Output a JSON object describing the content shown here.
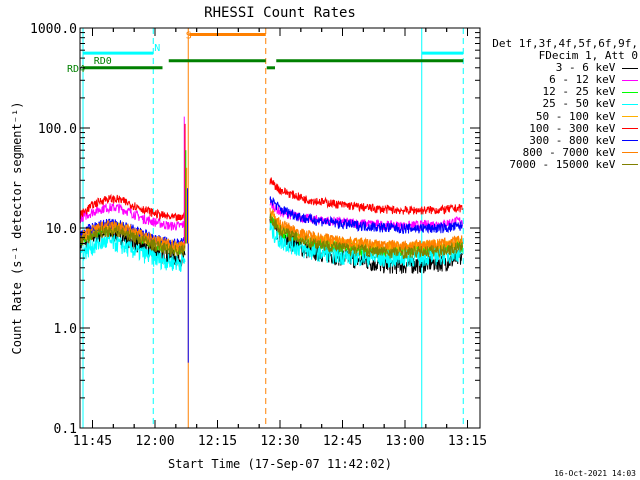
{
  "chart_data": {
    "type": "line",
    "title": "RHESSI Count Rates",
    "xlabel": "Start Time (17-Sep-07 11:42:02)",
    "ylabel": "Count Rate (s⁻¹ detector segment⁻¹)",
    "ylog": true,
    "xlim_minutes": [
      11.7,
      13.3
    ],
    "ylim": [
      0.1,
      1000
    ],
    "x_ticks": [
      "11:45",
      "12:00",
      "12:15",
      "12:30",
      "12:45",
      "13:00",
      "13:15"
    ],
    "y_ticks": [
      "0.1",
      "1.0",
      "10.0",
      "100.0",
      "1000.0"
    ],
    "legend_header": [
      "Det 1f,3f,4f,5f,6f,9f,",
      "FDecim 1, Att 0"
    ],
    "series": [
      {
        "name": "3 - 6 keV",
        "color": "#000000",
        "before": [
          [
            11.7,
            7.0
          ],
          [
            11.75,
            8.5
          ],
          [
            11.8,
            9.2
          ],
          [
            11.85,
            8.8
          ],
          [
            11.9,
            7.8
          ],
          [
            11.95,
            6.6
          ],
          [
            12.0,
            5.8
          ],
          [
            12.06,
            5.2
          ],
          [
            12.1,
            5.0
          ],
          [
            12.12,
            5.0
          ]
        ],
        "after": [
          [
            12.46,
            12.0
          ],
          [
            12.5,
            8.5
          ],
          [
            12.6,
            6.2
          ],
          [
            12.75,
            5.2
          ],
          [
            12.9,
            4.4
          ],
          [
            13.0,
            4.3
          ],
          [
            13.15,
            4.6
          ],
          [
            13.23,
            5.0
          ]
        ]
      },
      {
        "name": "6 - 12 keV",
        "color": "#ff00ff",
        "before": [
          [
            11.7,
            12.5
          ],
          [
            11.75,
            14.5
          ],
          [
            11.8,
            16.0
          ],
          [
            11.85,
            16.0
          ],
          [
            11.9,
            14.5
          ],
          [
            11.95,
            12.5
          ],
          [
            12.0,
            11.5
          ],
          [
            12.06,
            10.5
          ],
          [
            12.1,
            10.5
          ],
          [
            12.12,
            11.0
          ]
        ],
        "after": [
          [
            12.46,
            18.0
          ],
          [
            12.5,
            14.5
          ],
          [
            12.6,
            12.5
          ],
          [
            12.75,
            11.5
          ],
          [
            12.9,
            10.8
          ],
          [
            13.0,
            10.5
          ],
          [
            13.15,
            11.0
          ],
          [
            13.23,
            12.0
          ]
        ]
      },
      {
        "name": "12 - 25 keV",
        "color": "#00ff00",
        "before": [
          [
            11.7,
            7.5
          ],
          [
            11.75,
            9.0
          ],
          [
            11.8,
            10.0
          ],
          [
            11.85,
            10.0
          ],
          [
            11.9,
            9.0
          ],
          [
            11.95,
            8.0
          ],
          [
            12.0,
            7.0
          ],
          [
            12.06,
            6.5
          ],
          [
            12.1,
            6.3
          ],
          [
            12.12,
            6.6
          ]
        ],
        "after": [
          [
            12.46,
            13.0
          ],
          [
            12.5,
            9.5
          ],
          [
            12.6,
            7.5
          ],
          [
            12.75,
            6.5
          ],
          [
            12.9,
            6.0
          ],
          [
            13.0,
            5.9
          ],
          [
            13.15,
            6.3
          ],
          [
            13.23,
            6.8
          ]
        ]
      },
      {
        "name": "25 - 50 keV",
        "color": "#00ffff",
        "before": [
          [
            11.7,
            5.5
          ],
          [
            11.75,
            6.6
          ],
          [
            11.8,
            7.3
          ],
          [
            11.85,
            7.0
          ],
          [
            11.9,
            6.2
          ],
          [
            11.95,
            5.6
          ],
          [
            12.0,
            5.0
          ],
          [
            12.06,
            4.6
          ],
          [
            12.1,
            4.5
          ],
          [
            12.12,
            4.8
          ]
        ],
        "after": [
          [
            12.46,
            10.0
          ],
          [
            12.5,
            7.5
          ],
          [
            12.6,
            6.0
          ],
          [
            12.75,
            5.3
          ],
          [
            12.9,
            5.0
          ],
          [
            13.0,
            5.0
          ],
          [
            13.15,
            5.3
          ],
          [
            13.23,
            5.8
          ]
        ]
      },
      {
        "name": "50 - 100 keV",
        "color": "#ffb000",
        "before": [
          [
            11.7,
            7.8
          ],
          [
            11.75,
            9.3
          ],
          [
            11.8,
            10.2
          ],
          [
            11.85,
            10.2
          ],
          [
            11.9,
            9.2
          ],
          [
            11.95,
            8.2
          ],
          [
            12.0,
            7.2
          ],
          [
            12.06,
            6.7
          ],
          [
            12.1,
            6.5
          ],
          [
            12.12,
            6.8
          ]
        ],
        "after": [
          [
            12.46,
            14.0
          ],
          [
            12.5,
            10.0
          ],
          [
            12.6,
            8.0
          ],
          [
            12.75,
            7.0
          ],
          [
            12.9,
            6.5
          ],
          [
            13.0,
            6.4
          ],
          [
            13.15,
            6.8
          ],
          [
            13.23,
            7.3
          ]
        ]
      },
      {
        "name": "100 - 300 keV",
        "color": "#ff0000",
        "before": [
          [
            11.7,
            13.5
          ],
          [
            11.75,
            17.0
          ],
          [
            11.8,
            19.5
          ],
          [
            11.85,
            19.5
          ],
          [
            11.9,
            17.5
          ],
          [
            11.95,
            15.5
          ],
          [
            12.0,
            14.0
          ],
          [
            12.06,
            12.8
          ],
          [
            12.1,
            12.5
          ],
          [
            12.12,
            13.5
          ]
        ],
        "after": [
          [
            12.46,
            30.0
          ],
          [
            12.5,
            24.0
          ],
          [
            12.6,
            19.5
          ],
          [
            12.75,
            17.0
          ],
          [
            12.9,
            15.5
          ],
          [
            13.0,
            15.0
          ],
          [
            13.15,
            15.2
          ],
          [
            13.23,
            16.0
          ]
        ]
      },
      {
        "name": "300 - 800 keV",
        "color": "#0000ff",
        "before": [
          [
            11.7,
            8.5
          ],
          [
            11.75,
            10.2
          ],
          [
            11.8,
            11.0
          ],
          [
            11.85,
            11.0
          ],
          [
            11.9,
            10.0
          ],
          [
            11.95,
            8.8
          ],
          [
            12.0,
            7.8
          ],
          [
            12.06,
            7.2
          ],
          [
            12.1,
            7.0
          ],
          [
            12.12,
            7.4
          ]
        ],
        "after": [
          [
            12.46,
            20.0
          ],
          [
            12.5,
            15.5
          ],
          [
            12.6,
            12.5
          ],
          [
            12.75,
            11.0
          ],
          [
            12.9,
            10.2
          ],
          [
            13.0,
            9.9
          ],
          [
            13.15,
            10.0
          ],
          [
            13.23,
            10.5
          ]
        ]
      },
      {
        "name": "800 - 7000 keV",
        "color": "#ff8000",
        "before": [
          [
            11.7,
            8.0
          ],
          [
            11.75,
            9.6
          ],
          [
            11.8,
            10.5
          ],
          [
            11.85,
            10.5
          ],
          [
            11.9,
            9.5
          ],
          [
            11.95,
            8.5
          ],
          [
            12.0,
            7.5
          ],
          [
            12.06,
            6.9
          ],
          [
            12.1,
            6.7
          ],
          [
            12.12,
            7.0
          ]
        ],
        "after": [
          [
            12.46,
            15.0
          ],
          [
            12.5,
            11.0
          ],
          [
            12.6,
            8.6
          ],
          [
            12.75,
            7.4
          ],
          [
            12.9,
            6.8
          ],
          [
            13.0,
            6.7
          ],
          [
            13.15,
            7.0
          ],
          [
            13.23,
            7.6
          ]
        ]
      },
      {
        "name": "7000 - 15000 keV",
        "color": "#808000",
        "before": [
          [
            11.7,
            7.2
          ],
          [
            11.75,
            8.6
          ],
          [
            11.8,
            9.4
          ],
          [
            11.85,
            9.4
          ],
          [
            11.9,
            8.5
          ],
          [
            11.95,
            7.6
          ],
          [
            12.0,
            6.7
          ],
          [
            12.06,
            6.1
          ],
          [
            12.1,
            5.9
          ],
          [
            12.12,
            6.2
          ]
        ],
        "after": [
          [
            12.46,
            13.0
          ],
          [
            12.5,
            9.5
          ],
          [
            12.6,
            7.4
          ],
          [
            12.75,
            6.3
          ],
          [
            12.9,
            5.8
          ],
          [
            13.0,
            5.7
          ],
          [
            13.15,
            6.0
          ],
          [
            13.23,
            6.5
          ]
        ]
      }
    ],
    "spike": {
      "x": 12.125,
      "values": [
        130,
        110,
        60,
        40,
        25,
        0.45
      ]
    },
    "annotations": {
      "s_label": "S",
      "n_label": "N",
      "rd0_label": "RD0",
      "rd4_label": "RD4",
      "vlines": [
        {
          "x": 11.712,
          "color": "#00ffff",
          "style": "solid"
        },
        {
          "x": 11.993,
          "color": "#00ffff",
          "style": "dashed"
        },
        {
          "x": 12.133,
          "color": "#ff8000",
          "style": "solid"
        },
        {
          "x": 12.443,
          "color": "#ff8000",
          "style": "dashed"
        },
        {
          "x": 13.067,
          "color": "#00ffff",
          "style": "solid"
        },
        {
          "x": 13.233,
          "color": "#00ffff",
          "style": "dashed"
        }
      ],
      "bars": [
        {
          "x0": 11.712,
          "x1": 11.993,
          "y": 560,
          "color": "#00ffff"
        },
        {
          "x0": 13.067,
          "x1": 13.233,
          "y": 560,
          "color": "#00ffff"
        },
        {
          "x0": 12.137,
          "x1": 12.443,
          "y": 860,
          "color": "#ff8000"
        },
        {
          "x0": 11.712,
          "x1": 12.03,
          "y": 400,
          "color": "#008000"
        },
        {
          "x0": 12.055,
          "x1": 12.443,
          "y": 470,
          "color": "#008000"
        },
        {
          "x0": 12.447,
          "x1": 12.48,
          "y": 400,
          "color": "#008000"
        },
        {
          "x0": 12.485,
          "x1": 13.233,
          "y": 470,
          "color": "#008000"
        }
      ]
    }
  },
  "timestamp": "16-Oct-2021 14:03"
}
